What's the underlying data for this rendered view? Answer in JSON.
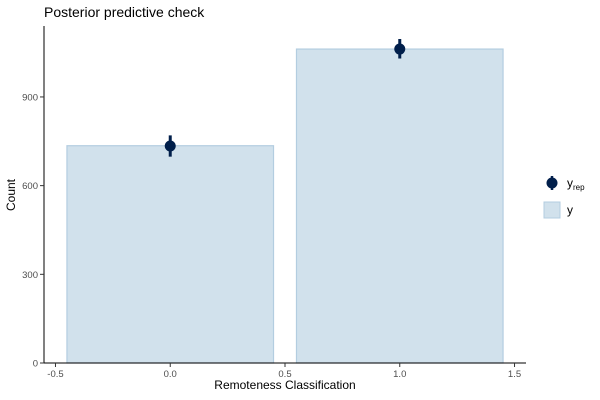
{
  "chart_data": {
    "type": "bar",
    "title": "Posterior predictive check",
    "xlabel": "Remoteness Classification",
    "ylabel": "Count",
    "x": [
      0,
      1
    ],
    "xlim": [
      -0.5,
      1.5
    ],
    "ylim": [
      0,
      1140
    ],
    "xticks": [
      -0.5,
      0.0,
      0.5,
      1.0,
      1.5
    ],
    "xtick_labels": [
      "-0.5",
      "0.0",
      "0.5",
      "1.0",
      "1.5"
    ],
    "yticks": [
      0,
      300,
      600,
      900
    ],
    "ytick_labels": [
      "0",
      "300",
      "600",
      "900"
    ],
    "grid": false,
    "legend_position": "right",
    "series": [
      {
        "name": "y",
        "kind": "bar",
        "values": [
          735,
          1062
        ],
        "fill": "#d1e1ec",
        "stroke": "#b3cde0"
      },
      {
        "name": "y_rep",
        "kind": "pointrange",
        "values": [
          734,
          1062
        ],
        "lower": [
          698,
          1030
        ],
        "upper": [
          770,
          1096
        ],
        "color": "#011f4b"
      }
    ],
    "legend": [
      {
        "label": "y",
        "sub": "rep",
        "marker": "point"
      },
      {
        "label": "y",
        "sub": "",
        "marker": "bar"
      }
    ]
  }
}
